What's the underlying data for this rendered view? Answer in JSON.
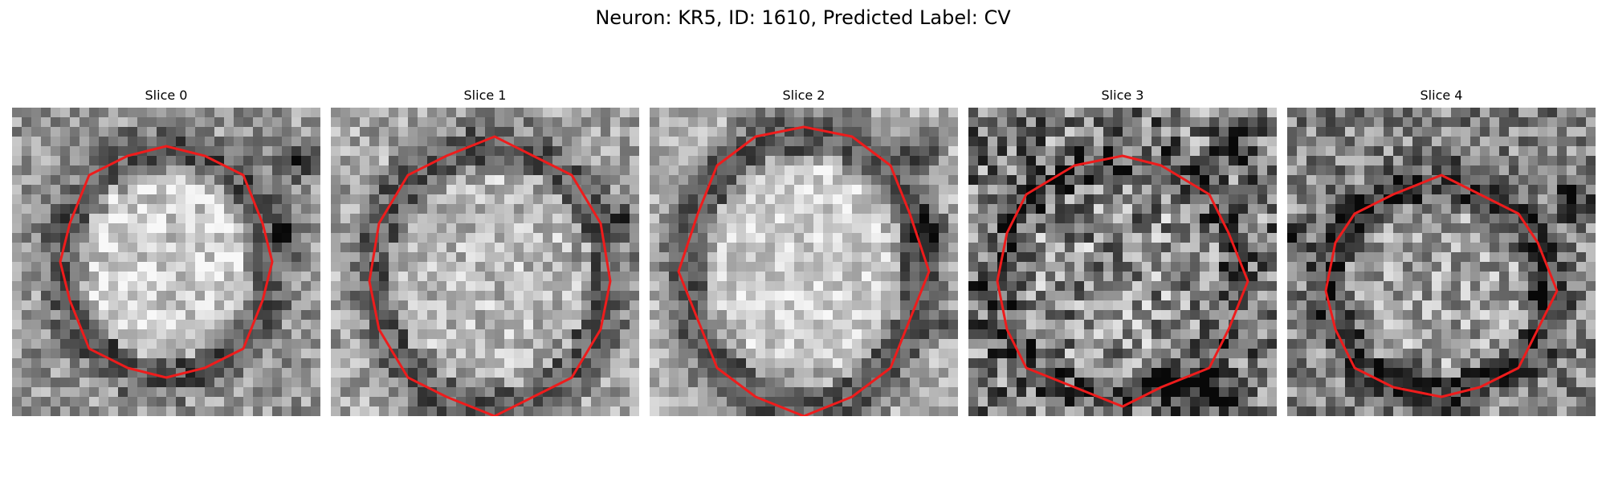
{
  "figure": {
    "title": "Neuron: KR5, ID: 1610, Predicted Label: CV"
  },
  "panels": [
    {
      "title": "Slice 0"
    },
    {
      "title": "Slice 1"
    },
    {
      "title": "Slice 2"
    },
    {
      "title": "Slice 3"
    },
    {
      "title": "Slice 4"
    }
  ],
  "style": {
    "contour_color": "#ee1c1c",
    "colormap": "grayscale"
  }
}
